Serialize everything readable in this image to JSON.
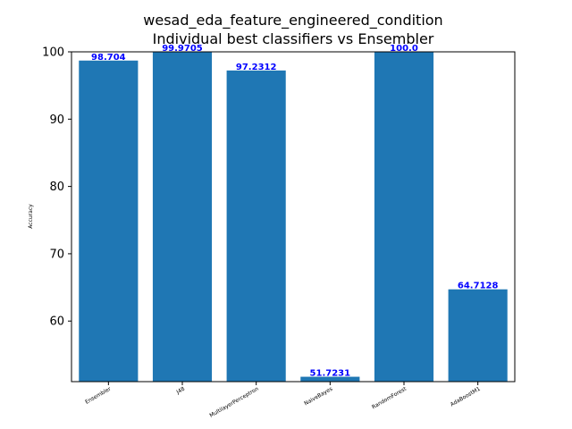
{
  "chart_data": {
    "type": "bar",
    "title_line1": "wesad_eda_feature_engineered_condition",
    "title_line2": "Individual best classifiers vs Ensembler",
    "ylabel": "Accuracy",
    "xlabel": "",
    "ylim": [
      51,
      100
    ],
    "yticks": [
      60,
      70,
      80,
      90,
      100
    ],
    "categories": [
      "Ensembler",
      "J48",
      "MultilayerPerceptron",
      "NaiveBayes",
      "RandomForest",
      "AdaBoostM1"
    ],
    "values": [
      98.704,
      99.9705,
      97.2312,
      51.7231,
      100.0,
      64.7128
    ],
    "value_labels": [
      "98.704",
      "99.9705",
      "97.2312",
      "51.7231",
      "100.0",
      "64.7128"
    ],
    "bar_color": "#1f77b4",
    "label_color": "#0000ff",
    "grid": false,
    "legend": "none"
  }
}
